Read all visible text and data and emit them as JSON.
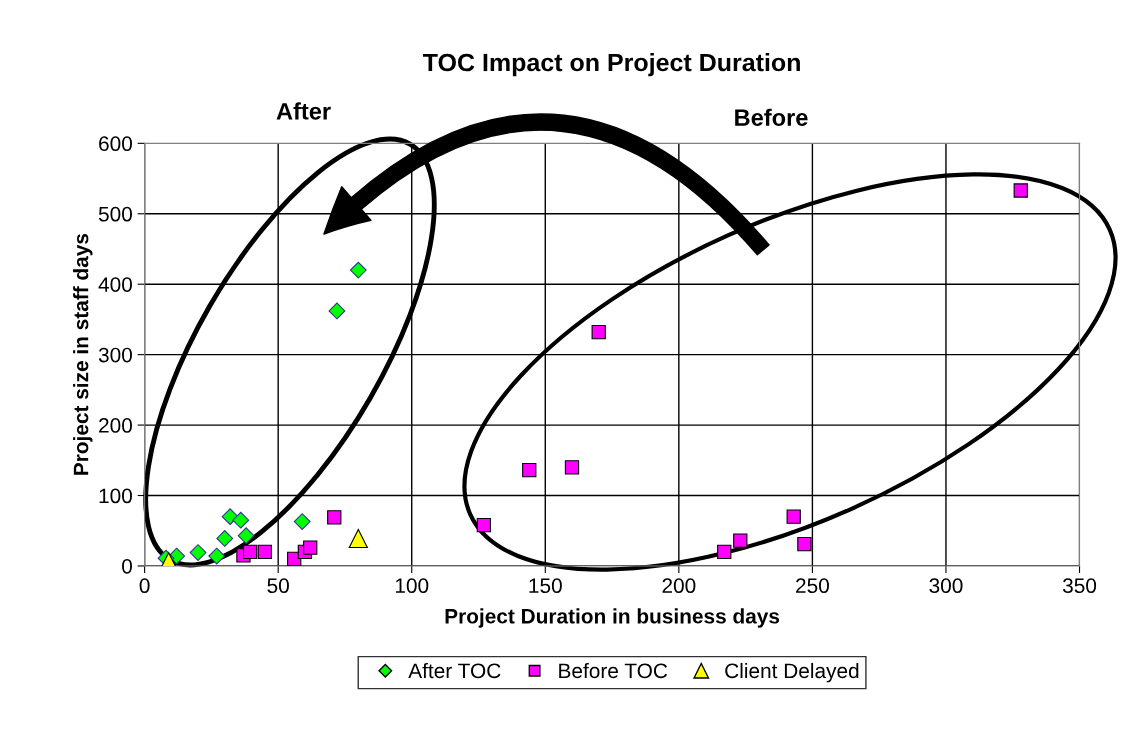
{
  "chart_data": {
    "type": "scatter",
    "title": "TOC Impact on Project Duration",
    "xlabel": "Project Duration in business days",
    "ylabel": "Project size in staff days",
    "annotations": [
      "After",
      "Before"
    ],
    "series": [
      {
        "name": "After TOC",
        "color": "#00ff00",
        "marker": "diamond",
        "x": [
          80,
          72,
          32,
          36,
          38,
          30,
          20,
          27,
          12,
          8,
          59
        ],
        "values": [
          420,
          362,
          70,
          65,
          43,
          39,
          19,
          14,
          14,
          11,
          63
        ]
      },
      {
        "name": "Before TOC",
        "color": "#ff00ff",
        "marker": "square",
        "x": [
          37,
          39.5,
          45,
          56,
          60,
          62,
          71,
          328,
          170,
          144,
          160,
          127,
          217,
          223,
          243,
          247
        ],
        "values": [
          15,
          20,
          20,
          10,
          20,
          26,
          69,
          533,
          332,
          136,
          140,
          58,
          20,
          36,
          70,
          31
        ]
      },
      {
        "name": "Client Delayed",
        "color": "#ffff00",
        "marker": "triangle",
        "x": [
          9,
          80
        ],
        "values": [
          6,
          39
        ]
      }
    ],
    "xlim": [
      0,
      350
    ],
    "xticks": [
      0,
      50,
      100,
      150,
      200,
      250,
      300,
      350
    ],
    "ylim": [
      0,
      600
    ],
    "yticks": [
      0,
      100,
      200,
      300,
      400,
      500,
      600
    ],
    "grid": true,
    "legend": "bottom"
  }
}
